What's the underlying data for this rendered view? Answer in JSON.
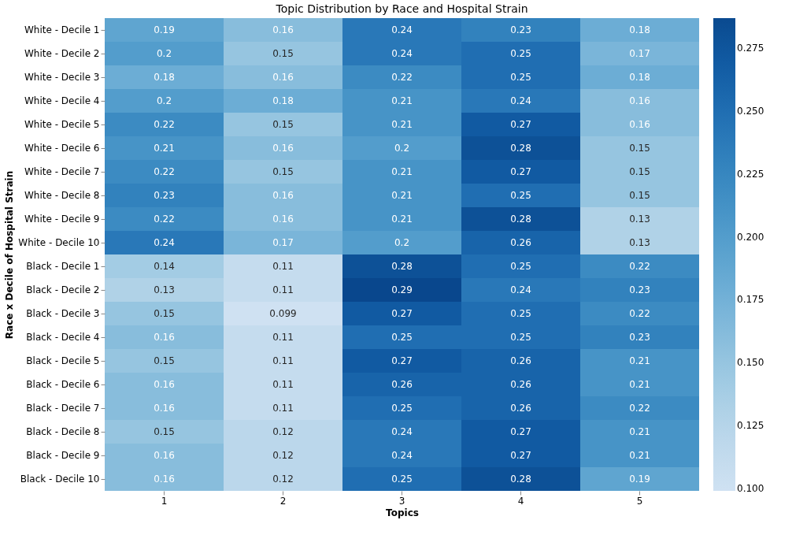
{
  "chart_data": {
    "type": "heatmap",
    "title": "Topic Distribution by Race and Hospital Strain",
    "xlabel": "Topics",
    "ylabel": "Race x Decile of Hospital Strain",
    "categories": [
      "1",
      "2",
      "3",
      "4",
      "5"
    ],
    "y_categories": [
      "White - Decile 1",
      "White - Decile 2",
      "White - Decile 3",
      "White - Decile 4",
      "White - Decile 5",
      "White - Decile 6",
      "White - Decile 7",
      "White - Decile 8",
      "White - Decile 9",
      "White - Decile 10",
      "Black - Decile 1",
      "Black - Decile 2",
      "Black - Decile 3",
      "Black - Decile 4",
      "Black - Decile 5",
      "Black - Decile 6",
      "Black - Decile 7",
      "Black - Decile 8",
      "Black - Decile 9",
      "Black - Decile 10"
    ],
    "cells": [
      [
        0.19,
        0.16,
        0.24,
        0.23,
        0.18
      ],
      [
        0.2,
        0.15,
        0.24,
        0.25,
        0.17
      ],
      [
        0.18,
        0.16,
        0.22,
        0.25,
        0.18
      ],
      [
        0.2,
        0.18,
        0.21,
        0.24,
        0.16
      ],
      [
        0.22,
        0.15,
        0.21,
        0.27,
        0.16
      ],
      [
        0.21,
        0.16,
        0.2,
        0.28,
        0.15
      ],
      [
        0.22,
        0.15,
        0.21,
        0.27,
        0.15
      ],
      [
        0.23,
        0.16,
        0.21,
        0.25,
        0.15
      ],
      [
        0.22,
        0.16,
        0.21,
        0.28,
        0.13
      ],
      [
        0.24,
        0.17,
        0.2,
        0.26,
        0.13
      ],
      [
        0.14,
        0.11,
        0.28,
        0.25,
        0.22
      ],
      [
        0.13,
        0.11,
        0.29,
        0.24,
        0.23
      ],
      [
        0.15,
        0.099,
        0.27,
        0.25,
        0.22
      ],
      [
        0.16,
        0.11,
        0.25,
        0.25,
        0.23
      ],
      [
        0.15,
        0.11,
        0.27,
        0.26,
        0.21
      ],
      [
        0.16,
        0.11,
        0.26,
        0.26,
        0.21
      ],
      [
        0.16,
        0.11,
        0.25,
        0.26,
        0.22
      ],
      [
        0.15,
        0.12,
        0.24,
        0.27,
        0.21
      ],
      [
        0.16,
        0.12,
        0.24,
        0.27,
        0.21
      ],
      [
        0.16,
        0.12,
        0.25,
        0.28,
        0.19
      ]
    ],
    "clim": [
      0.099,
      0.287
    ],
    "cticks": [
      {
        "value": 0.1,
        "label": "0.100"
      },
      {
        "value": 0.125,
        "label": "0.125"
      },
      {
        "value": 0.15,
        "label": "0.150"
      },
      {
        "value": 0.175,
        "label": "0.175"
      },
      {
        "value": 0.2,
        "label": "0.200"
      },
      {
        "value": 0.225,
        "label": "0.225"
      },
      {
        "value": 0.25,
        "label": "0.250"
      },
      {
        "value": 0.275,
        "label": "0.275"
      }
    ],
    "data_labels": true,
    "grid": false
  }
}
